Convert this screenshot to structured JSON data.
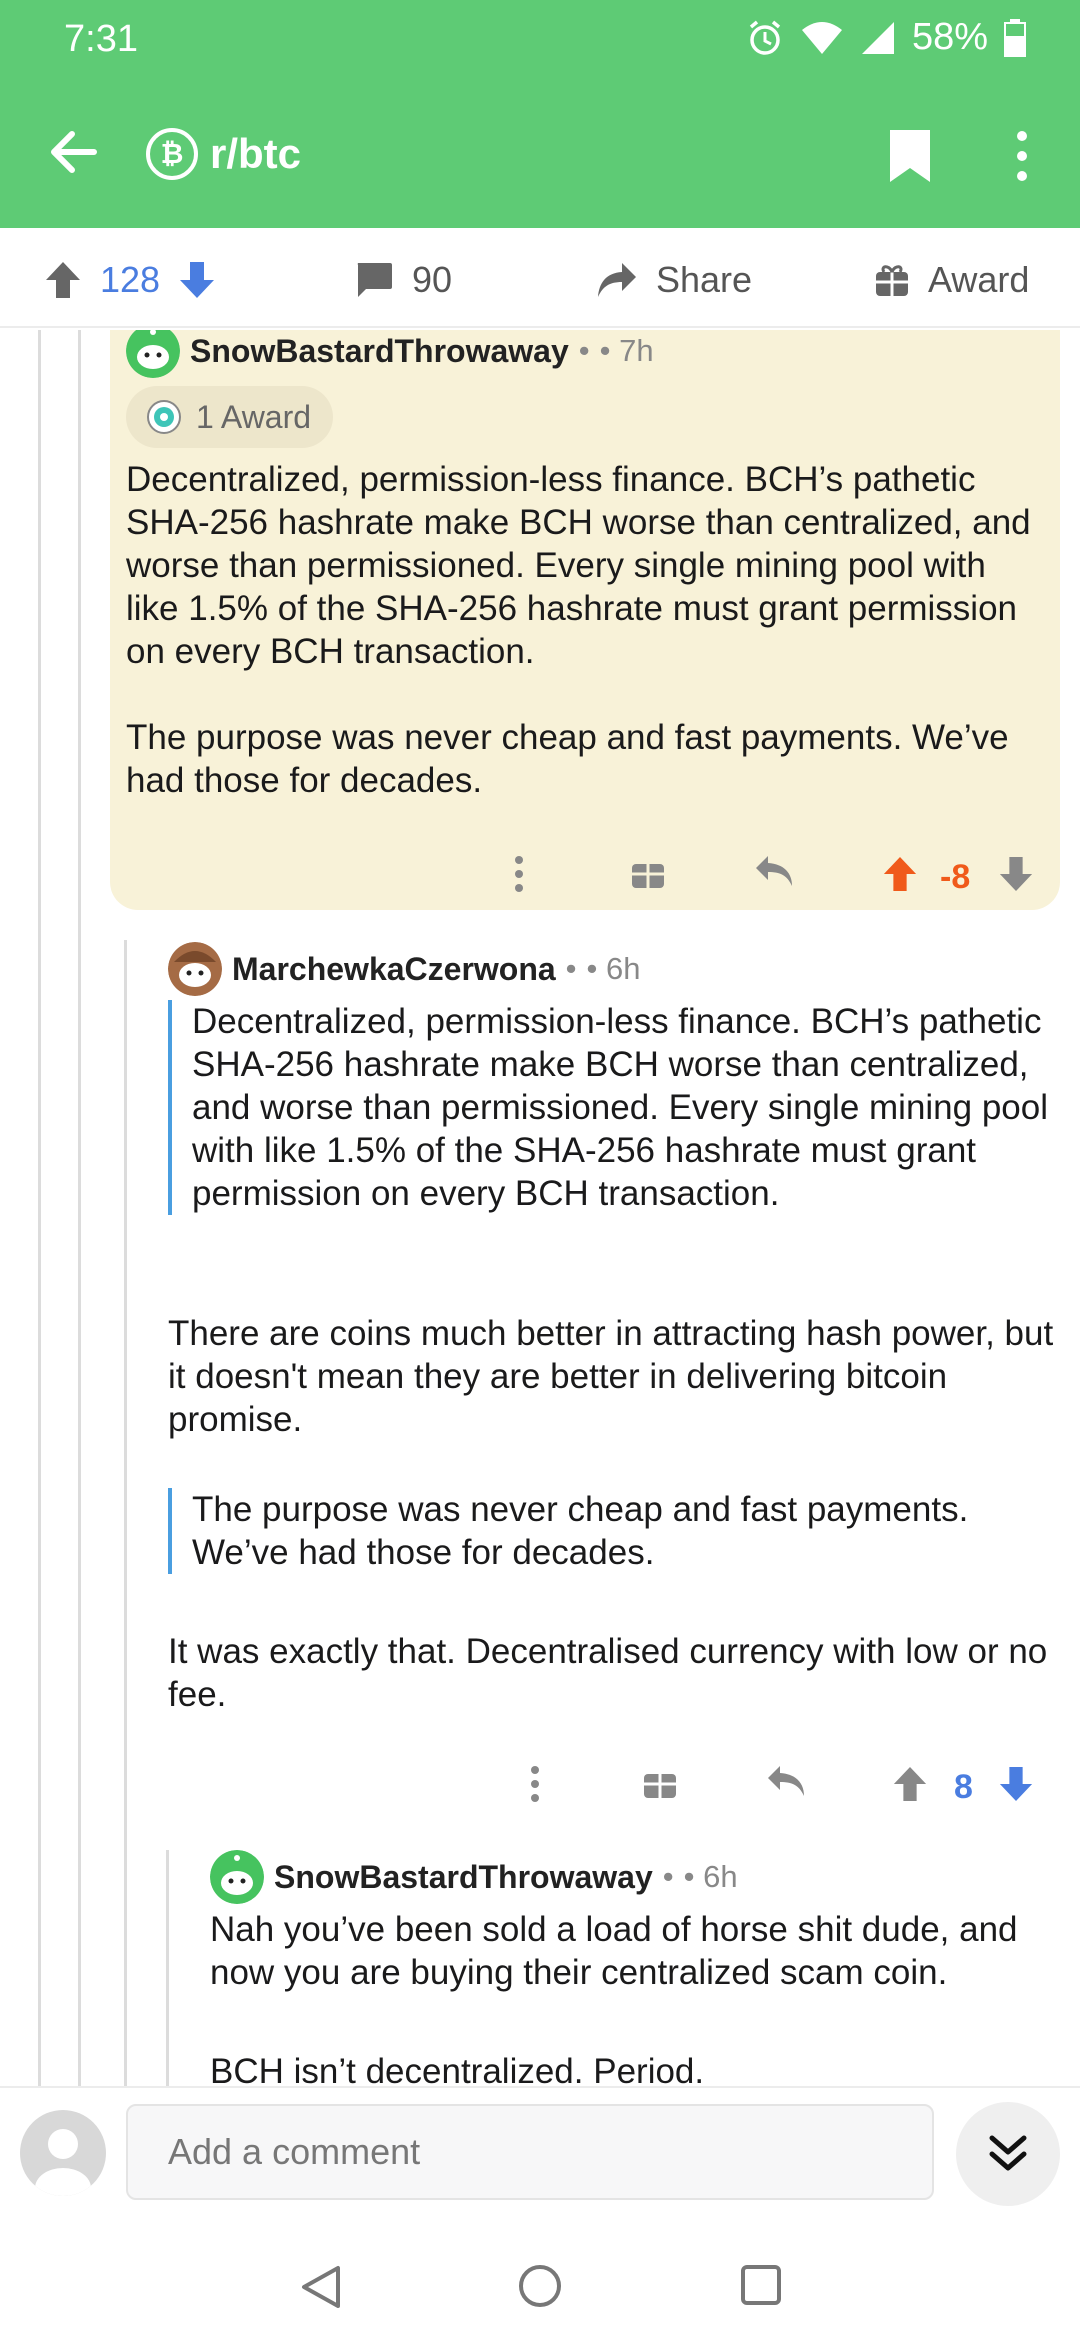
{
  "status": {
    "time": "7:31",
    "battery": "58%"
  },
  "header": {
    "subreddit": "r/btc",
    "sub_icon_glyph": "₿"
  },
  "post_actions": {
    "upvotes": "128",
    "comments": "90",
    "share_label": "Share",
    "award_label": "Award"
  },
  "comments": [
    {
      "author": "SnowBastardThrowaway",
      "separator": "•",
      "age": "• 7h",
      "award": "1 Award",
      "paragraphs": [
        "Decentralized, permission-less finance. BCH’s pathetic SHA-256 hashrate make BCH worse than centralized, and worse than permissioned. Every single mining pool with like 1.5% of the SHA-256 hashrate must grant permission on every BCH transaction.",
        "The purpose was never cheap and fast payments. We’ve had those for decades."
      ],
      "score": "-8"
    },
    {
      "author": "MarchewkaCzerwona",
      "separator": "•",
      "age": "• 6h",
      "quote1": "Decentralized, permission-less finance. BCH’s pathetic SHA-256 hashrate make BCH worse than centralized, and worse than permissioned. Every single mining pool with like 1.5% of the SHA-256 hashrate must grant permission on every BCH transaction.",
      "para1": "There are coins much better in attracting hash power, but it doesn't mean they are better in delivering bitcoin promise.",
      "quote2": "The purpose was never cheap and fast payments. We’ve had those for decades.",
      "para2": "It was exactly that. Decentralised currency with low or no fee.",
      "score": "8"
    },
    {
      "author": "SnowBastardThrowaway",
      "separator": "•",
      "age": "• 6h",
      "para1": "Nah you’ve been sold a load of horse shit dude, and now you are buying their centralized scam coin.",
      "para2": "BCH isn’t decentralized. Period."
    }
  ],
  "composer": {
    "placeholder": "Add a comment"
  },
  "colors": {
    "brand": "#5ecb75",
    "upvote": "#f05a1a",
    "downvote": "#4a7de0",
    "highlight": "#f8f2d8",
    "quote_bar": "#4a9ee0"
  }
}
